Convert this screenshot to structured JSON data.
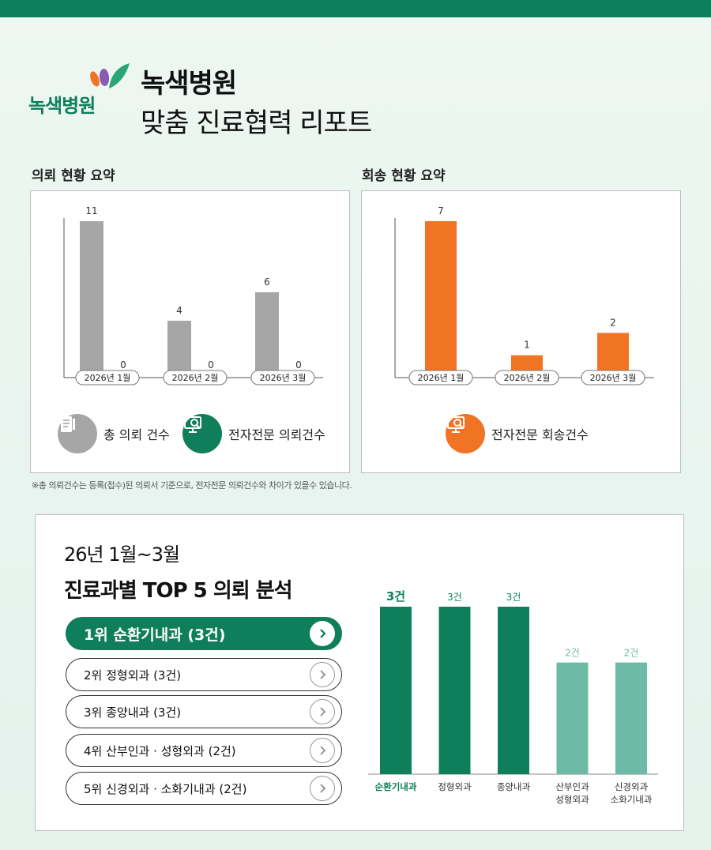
{
  "header": {
    "logo_text": "녹색병원",
    "title": "녹색병원",
    "subtitle": "맞춤 진료협력 리포트"
  },
  "referral_summary": {
    "label": "의뢰 현황 요약",
    "legend": [
      {
        "label": "총 의뢰 건수",
        "icon": "document-icon",
        "color": "#a6a6a6"
      },
      {
        "label": "전자전문 의뢰건수",
        "icon": "monitor-search-icon",
        "color": "#0e7f5a"
      }
    ]
  },
  "return_summary": {
    "label": "회송 현황 요약",
    "legend": [
      {
        "label": "전자전문 회송건수",
        "icon": "monitor-search-icon",
        "color": "#f07424"
      }
    ]
  },
  "footnote": "※총 의뢰건수는 등록(접수)된 의뢰서 기준으로, 전자전문 의뢰건수와 차이가 있을수 있습니다.",
  "top5": {
    "subtitle": "26년 1월~3월",
    "title": "진료과별 TOP 5 의뢰 분석",
    "ranks": [
      {
        "label": "1위  순환기내과 (3건)"
      },
      {
        "label": "2위  정형외과 (3건)"
      },
      {
        "label": "3위  종양내과 (3건)"
      },
      {
        "label": "4위  산부인과 · 성형외과 (2건)"
      },
      {
        "label": "5위  신경외과 · 소화기내과 (2건)"
      }
    ]
  },
  "colors": {
    "brand_green": "#0e7f5a",
    "light_green": "#6dbba6",
    "gray_bar": "#a6a6a6",
    "orange": "#f07424"
  },
  "chart_data": [
    {
      "type": "bar",
      "categories": [
        "2026년 1월",
        "2026년 2월",
        "2026년 3월"
      ],
      "series": [
        {
          "name": "총 의뢰 건수",
          "values": [
            11,
            4,
            6
          ],
          "color": "#a6a6a6"
        },
        {
          "name": "전자전문 의뢰건수",
          "values": [
            0,
            0,
            0
          ],
          "color": "#0e7f5a"
        }
      ],
      "ylim": [
        0,
        11
      ]
    },
    {
      "type": "bar",
      "categories": [
        "2026년 1월",
        "2026년 2월",
        "2026년 3월"
      ],
      "series": [
        {
          "name": "전자전문 회송건수",
          "values": [
            7,
            1,
            2
          ],
          "color": "#f07424"
        }
      ],
      "ylim": [
        0,
        7
      ]
    },
    {
      "type": "bar",
      "categories": [
        "순환기내과",
        "정형외과",
        "종양내과",
        "산부인과\n성형외과",
        "신경외과\n소화기내과"
      ],
      "values": [
        3,
        3,
        3,
        2,
        2
      ],
      "value_labels": [
        "3건",
        "3건",
        "3건",
        "2건",
        "2건"
      ],
      "colors": [
        "#0e7f5a",
        "#0e7f5a",
        "#0e7f5a",
        "#6dbba6",
        "#6dbba6"
      ],
      "ylim": [
        0,
        3
      ]
    }
  ]
}
